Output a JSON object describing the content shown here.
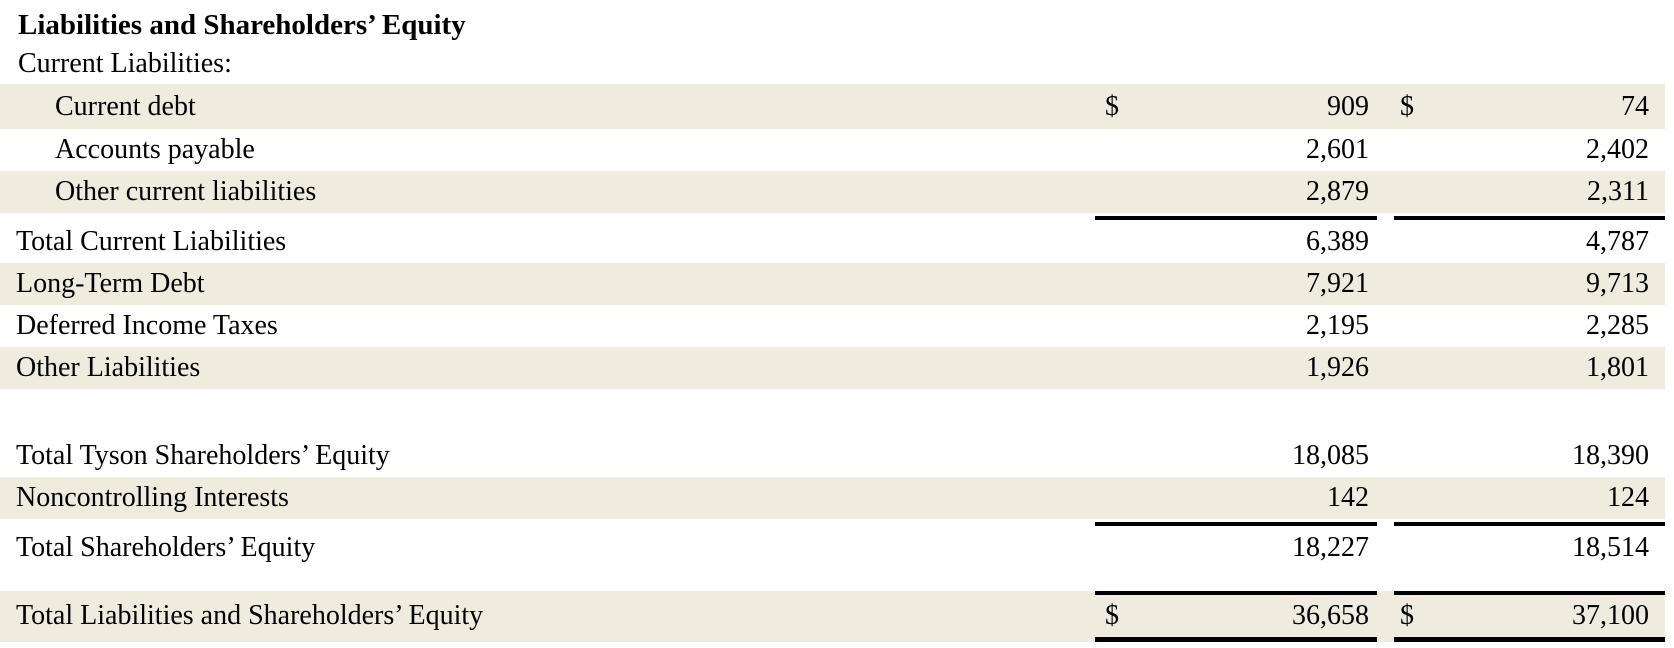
{
  "colors": {
    "row_shade": "#efebdf",
    "text": "#000000",
    "rule": "#000000",
    "background": "#ffffff"
  },
  "table": {
    "title": "Liabilities and Shareholders’ Equity",
    "section_header": "Current Liabilities:",
    "currency_symbol": "$",
    "columns": [
      "label",
      "value-column-1",
      "value-column-2"
    ],
    "rows": [
      {
        "name": "current-debt",
        "label": "Current debt",
        "indent": true,
        "shaded": true,
        "dollar": true,
        "values": [
          "909",
          "74"
        ]
      },
      {
        "name": "accounts-payable",
        "label": "Accounts payable",
        "indent": true,
        "shaded": false,
        "dollar": false,
        "values": [
          "2,601",
          "2,402"
        ]
      },
      {
        "name": "other-current-liabilities",
        "label": "Other current liabilities",
        "indent": true,
        "shaded": true,
        "dollar": false,
        "values": [
          "2,879",
          "2,311"
        ],
        "rule_below": true
      },
      {
        "name": "total-current-liabilities",
        "label": "Total Current Liabilities",
        "indent": false,
        "shaded": false,
        "dollar": false,
        "values": [
          "6,389",
          "4,787"
        ]
      },
      {
        "name": "long-term-debt",
        "label": "Long-Term Debt",
        "indent": false,
        "shaded": true,
        "dollar": false,
        "values": [
          "7,921",
          "9,713"
        ]
      },
      {
        "name": "deferred-income-taxes",
        "label": "Deferred Income Taxes",
        "indent": false,
        "shaded": false,
        "dollar": false,
        "values": [
          "2,195",
          "2,285"
        ]
      },
      {
        "name": "other-liabilities",
        "label": "Other Liabilities",
        "indent": false,
        "shaded": true,
        "dollar": false,
        "values": [
          "1,926",
          "1,801"
        ]
      },
      {
        "name": "spacer",
        "type": "blank",
        "size": "large"
      },
      {
        "name": "total-tyson-shareholders-equity",
        "label": "Total Tyson Shareholders’ Equity",
        "indent": false,
        "shaded": false,
        "dollar": false,
        "values": [
          "18,085",
          "18,390"
        ]
      },
      {
        "name": "noncontrolling-interests",
        "label": "Noncontrolling Interests",
        "indent": false,
        "shaded": true,
        "dollar": false,
        "values": [
          "142",
          "124"
        ],
        "rule_below": true
      },
      {
        "name": "total-shareholders-equity",
        "label": "Total Shareholders’ Equity",
        "indent": false,
        "shaded": false,
        "dollar": false,
        "values": [
          "18,227",
          "18,514"
        ]
      },
      {
        "name": "spacer",
        "type": "blank",
        "size": "small"
      },
      {
        "name": "total-liabilities-and-shareholders-equity",
        "label": "Total Liabilities and Shareholders’ Equity",
        "indent": false,
        "shaded": true,
        "dollar": true,
        "values": [
          "36,658",
          "37,100"
        ],
        "rule_above": true,
        "rule_below": "thick"
      }
    ]
  }
}
